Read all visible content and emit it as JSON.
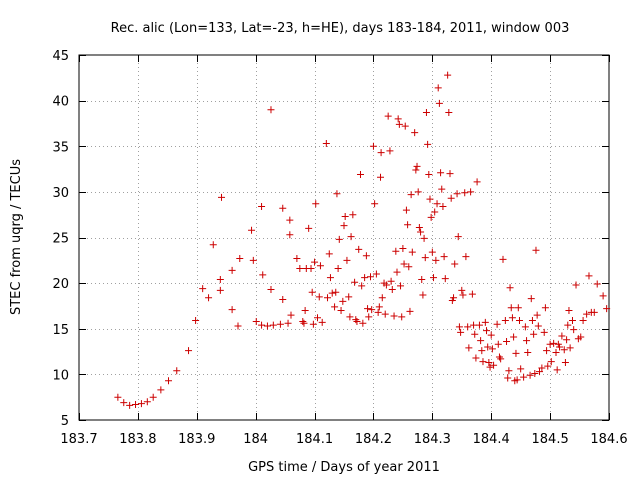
{
  "chart_data": {
    "type": "scatter",
    "title": "Rec. alic (Lon=133, Lat=-23, h=HE), days 183-184, 2011, window 003",
    "xlabel": "GPS time / Days of year 2011",
    "ylabel": "STEC from uqrg / TECUs",
    "xlim": [
      183.7,
      184.6
    ],
    "ylim": [
      5,
      45
    ],
    "xticks": [
      183.7,
      183.8,
      183.9,
      184.0,
      184.1,
      184.2,
      184.3,
      184.4,
      184.5,
      184.6
    ],
    "xtick_labels": [
      "183.7",
      "183.8",
      "183.9",
      "184",
      "184.1",
      "184.2",
      "184.3",
      "184.4",
      "184.5",
      "184.6"
    ],
    "yticks": [
      5,
      10,
      15,
      20,
      25,
      30,
      35,
      40,
      45
    ],
    "ytick_labels": [
      "5",
      "10",
      "15",
      "20",
      "25",
      "30",
      "35",
      "40",
      "45"
    ],
    "grid": true,
    "marker": "+",
    "color": "#cc0000",
    "series": [
      {
        "name": "STEC",
        "points": [
          [
            183.766,
            7.5
          ],
          [
            183.776,
            6.9
          ],
          [
            183.786,
            6.6
          ],
          [
            183.796,
            6.7
          ],
          [
            183.806,
            6.8
          ],
          [
            183.816,
            7.0
          ],
          [
            183.826,
            7.5
          ],
          [
            183.839,
            8.3
          ],
          [
            183.852,
            9.3
          ],
          [
            183.866,
            10.4
          ],
          [
            183.886,
            12.6
          ],
          [
            183.898,
            15.9
          ],
          [
            183.91,
            19.4
          ],
          [
            183.92,
            18.4
          ],
          [
            183.928,
            24.2
          ],
          [
            183.94,
            20.4
          ],
          [
            183.94,
            19.2
          ],
          [
            183.942,
            29.4
          ],
          [
            183.96,
            21.4
          ],
          [
            183.96,
            17.1
          ],
          [
            183.97,
            15.3
          ],
          [
            183.973,
            22.7
          ],
          [
            183.993,
            25.8
          ],
          [
            183.996,
            22.5
          ],
          [
            184.001,
            15.8
          ],
          [
            184.01,
            28.4
          ],
          [
            184.01,
            15.4
          ],
          [
            184.012,
            20.9
          ],
          [
            184.02,
            15.3
          ],
          [
            184.026,
            39.0
          ],
          [
            184.026,
            19.3
          ],
          [
            184.03,
            15.4
          ],
          [
            184.042,
            15.5
          ],
          [
            184.046,
            28.2
          ],
          [
            184.046,
            18.2
          ],
          [
            184.055,
            15.6
          ],
          [
            184.058,
            26.9
          ],
          [
            184.058,
            25.3
          ],
          [
            184.06,
            16.5
          ],
          [
            184.07,
            22.7
          ],
          [
            184.075,
            21.6
          ],
          [
            184.08,
            15.8
          ],
          [
            184.082,
            15.6
          ],
          [
            184.084,
            17.0
          ],
          [
            184.086,
            21.6
          ],
          [
            184.09,
            26.0
          ],
          [
            184.094,
            21.6
          ],
          [
            184.096,
            19.0
          ],
          [
            184.098,
            15.5
          ],
          [
            184.1,
            22.3
          ],
          [
            184.102,
            28.7
          ],
          [
            184.105,
            16.2
          ],
          [
            184.108,
            18.5
          ],
          [
            184.11,
            21.9
          ],
          [
            184.113,
            15.7
          ],
          [
            184.12,
            35.3
          ],
          [
            184.122,
            18.4
          ],
          [
            184.125,
            23.2
          ],
          [
            184.127,
            20.6
          ],
          [
            184.13,
            18.9
          ],
          [
            184.134,
            17.4
          ],
          [
            184.136,
            19.0
          ],
          [
            184.138,
            29.8
          ],
          [
            184.14,
            21.6
          ],
          [
            184.142,
            24.8
          ],
          [
            184.145,
            17.0
          ],
          [
            184.148,
            18.0
          ],
          [
            184.15,
            26.3
          ],
          [
            184.152,
            27.3
          ],
          [
            184.155,
            22.5
          ],
          [
            184.158,
            18.5
          ],
          [
            184.16,
            16.3
          ],
          [
            184.162,
            25.1
          ],
          [
            184.165,
            27.5
          ],
          [
            184.168,
            20.1
          ],
          [
            184.17,
            16.0
          ],
          [
            184.172,
            15.8
          ],
          [
            184.175,
            23.7
          ],
          [
            184.178,
            31.9
          ],
          [
            184.18,
            19.7
          ],
          [
            184.182,
            15.6
          ],
          [
            184.185,
            20.6
          ],
          [
            184.188,
            23.0
          ],
          [
            184.19,
            17.2
          ],
          [
            184.192,
            16.3
          ],
          [
            184.195,
            20.7
          ],
          [
            184.197,
            17.1
          ],
          [
            184.2,
            35.0
          ],
          [
            184.202,
            28.7
          ],
          [
            184.205,
            21.0
          ],
          [
            184.208,
            16.8
          ],
          [
            184.21,
            17.4
          ],
          [
            184.212,
            31.6
          ],
          [
            184.213,
            34.3
          ],
          [
            184.215,
            18.4
          ],
          [
            184.218,
            20.0
          ],
          [
            184.22,
            16.6
          ],
          [
            184.222,
            19.8
          ],
          [
            184.225,
            38.3
          ],
          [
            184.228,
            34.5
          ],
          [
            184.23,
            20.2
          ],
          [
            184.232,
            19.3
          ],
          [
            184.235,
            16.4
          ],
          [
            184.238,
            23.5
          ],
          [
            184.24,
            21.2
          ],
          [
            184.242,
            38.0
          ],
          [
            184.244,
            37.4
          ],
          [
            184.246,
            19.7
          ],
          [
            184.248,
            16.3
          ],
          [
            184.25,
            23.8
          ],
          [
            184.252,
            22.1
          ],
          [
            184.254,
            37.2
          ],
          [
            184.256,
            28.0
          ],
          [
            184.258,
            26.4
          ],
          [
            184.26,
            21.8
          ],
          [
            184.262,
            16.9
          ],
          [
            184.264,
            29.7
          ],
          [
            184.266,
            23.4
          ],
          [
            184.27,
            36.5
          ],
          [
            184.272,
            32.4
          ],
          [
            184.274,
            32.8
          ],
          [
            184.276,
            30.0
          ],
          [
            184.278,
            26.1
          ],
          [
            184.28,
            25.6
          ],
          [
            184.282,
            20.4
          ],
          [
            184.284,
            18.7
          ],
          [
            184.286,
            24.9
          ],
          [
            184.288,
            22.8
          ],
          [
            184.29,
            38.7
          ],
          [
            184.292,
            35.2
          ],
          [
            184.294,
            31.9
          ],
          [
            184.296,
            29.2
          ],
          [
            184.298,
            27.2
          ],
          [
            184.3,
            23.4
          ],
          [
            184.302,
            20.6
          ],
          [
            184.304,
            27.8
          ],
          [
            184.306,
            22.5
          ],
          [
            184.308,
            28.7
          ],
          [
            184.31,
            41.4
          ],
          [
            184.312,
            39.7
          ],
          [
            184.314,
            32.1
          ],
          [
            184.316,
            30.3
          ],
          [
            184.318,
            28.4
          ],
          [
            184.32,
            22.9
          ],
          [
            184.322,
            20.5
          ],
          [
            184.326,
            42.8
          ],
          [
            184.328,
            38.7
          ],
          [
            184.33,
            32.0
          ],
          [
            184.332,
            29.3
          ],
          [
            184.334,
            18.1
          ],
          [
            184.336,
            18.4
          ],
          [
            184.338,
            22.1
          ],
          [
            184.342,
            29.8
          ],
          [
            184.344,
            25.1
          ],
          [
            184.346,
            15.2
          ],
          [
            184.348,
            14.6
          ],
          [
            184.35,
            19.2
          ],
          [
            184.352,
            18.7
          ],
          [
            184.355,
            29.9
          ],
          [
            184.357,
            22.9
          ],
          [
            184.36,
            15.2
          ],
          [
            184.362,
            12.9
          ],
          [
            184.365,
            30.0
          ],
          [
            184.368,
            18.8
          ],
          [
            184.37,
            15.4
          ],
          [
            184.372,
            14.4
          ],
          [
            184.374,
            11.8
          ],
          [
            184.376,
            31.1
          ],
          [
            184.38,
            15.4
          ],
          [
            184.382,
            13.7
          ],
          [
            184.384,
            12.6
          ],
          [
            184.386,
            11.4
          ],
          [
            184.39,
            15.7
          ],
          [
            184.392,
            14.8
          ],
          [
            184.394,
            13.0
          ],
          [
            184.396,
            11.3
          ],
          [
            184.398,
            10.8
          ],
          [
            184.4,
            14.3
          ],
          [
            184.402,
            12.8
          ],
          [
            184.404,
            11.0
          ],
          [
            184.41,
            15.5
          ],
          [
            184.412,
            13.3
          ],
          [
            184.414,
            11.9
          ],
          [
            184.416,
            11.7
          ],
          [
            184.42,
            22.6
          ],
          [
            184.424,
            15.9
          ],
          [
            184.426,
            13.6
          ],
          [
            184.428,
            9.6
          ],
          [
            184.43,
            10.4
          ],
          [
            184.432,
            19.5
          ],
          [
            184.434,
            17.3
          ],
          [
            184.436,
            16.2
          ],
          [
            184.438,
            14.1
          ],
          [
            184.44,
            9.3
          ],
          [
            184.442,
            12.3
          ],
          [
            184.444,
            9.4
          ],
          [
            184.446,
            17.3
          ],
          [
            184.448,
            15.9
          ],
          [
            184.45,
            10.6
          ],
          [
            184.455,
            9.7
          ],
          [
            184.458,
            15.2
          ],
          [
            184.46,
            13.7
          ],
          [
            184.462,
            12.4
          ],
          [
            184.466,
            9.9
          ],
          [
            184.468,
            18.3
          ],
          [
            184.47,
            15.9
          ],
          [
            184.472,
            14.4
          ],
          [
            184.474,
            10.1
          ],
          [
            184.476,
            23.6
          ],
          [
            184.478,
            16.5
          ],
          [
            184.48,
            15.3
          ],
          [
            184.482,
            10.3
          ],
          [
            184.486,
            10.7
          ],
          [
            184.49,
            14.6
          ],
          [
            184.492,
            17.3
          ],
          [
            184.494,
            12.6
          ],
          [
            184.496,
            10.9
          ],
          [
            184.5,
            13.3
          ],
          [
            184.502,
            11.4
          ],
          [
            184.506,
            13.4
          ],
          [
            184.51,
            12.4
          ],
          [
            184.512,
            10.5
          ],
          [
            184.514,
            13.3
          ],
          [
            184.516,
            13.0
          ],
          [
            184.52,
            14.2
          ],
          [
            184.524,
            12.7
          ],
          [
            184.526,
            11.3
          ],
          [
            184.528,
            13.8
          ],
          [
            184.53,
            15.4
          ],
          [
            184.532,
            17.0
          ],
          [
            184.534,
            12.9
          ],
          [
            184.538,
            15.9
          ],
          [
            184.54,
            14.9
          ],
          [
            184.544,
            19.8
          ],
          [
            184.548,
            13.9
          ],
          [
            184.552,
            14.1
          ],
          [
            184.556,
            15.9
          ],
          [
            184.562,
            16.6
          ],
          [
            184.566,
            20.8
          ],
          [
            184.57,
            16.8
          ],
          [
            184.575,
            16.8
          ],
          [
            184.58,
            19.9
          ],
          [
            184.59,
            18.6
          ],
          [
            184.596,
            17.2
          ]
        ]
      }
    ]
  }
}
